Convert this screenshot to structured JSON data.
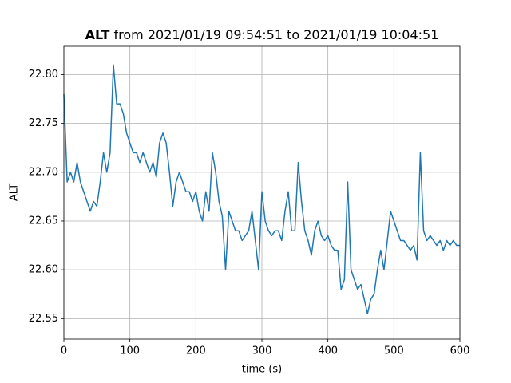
{
  "chart_data": {
    "type": "line",
    "title": {
      "bold": "ALT",
      "rest": "from 2021/01/19 09:54:51 to 2021/01/19 10:04:51"
    },
    "x_label": "time (s)",
    "y_label": "ALT",
    "x": [
      0,
      5,
      10,
      15,
      20,
      25,
      30,
      35,
      40,
      45,
      50,
      55,
      60,
      65,
      70,
      75,
      80,
      85,
      90,
      95,
      100,
      105,
      110,
      115,
      120,
      125,
      130,
      135,
      140,
      145,
      150,
      155,
      160,
      165,
      170,
      175,
      180,
      185,
      190,
      195,
      200,
      205,
      210,
      215,
      220,
      225,
      230,
      235,
      240,
      245,
      250,
      255,
      260,
      265,
      270,
      275,
      280,
      285,
      290,
      295,
      300,
      305,
      310,
      315,
      320,
      325,
      330,
      335,
      340,
      345,
      350,
      355,
      360,
      365,
      370,
      375,
      380,
      385,
      390,
      395,
      400,
      405,
      410,
      415,
      420,
      425,
      430,
      435,
      440,
      445,
      450,
      455,
      460,
      465,
      470,
      475,
      480,
      485,
      490,
      495,
      500,
      505,
      510,
      515,
      520,
      525,
      530,
      535,
      540,
      545,
      550,
      555,
      560,
      565,
      570,
      575,
      580,
      585,
      590,
      595,
      600
    ],
    "series": [
      {
        "name": "ALT",
        "color": "#1f77b4",
        "values": [
          22.78,
          22.69,
          22.7,
          22.69,
          22.71,
          22.69,
          22.68,
          22.67,
          22.66,
          22.67,
          22.665,
          22.69,
          22.72,
          22.7,
          22.72,
          22.81,
          22.77,
          22.77,
          22.76,
          22.74,
          22.73,
          22.72,
          22.72,
          22.71,
          22.72,
          22.71,
          22.7,
          22.71,
          22.695,
          22.73,
          22.74,
          22.73,
          22.7,
          22.665,
          22.69,
          22.7,
          22.69,
          22.68,
          22.68,
          22.67,
          22.68,
          22.66,
          22.65,
          22.68,
          22.66,
          22.72,
          22.7,
          22.67,
          22.655,
          22.6,
          22.66,
          22.65,
          22.64,
          22.64,
          22.63,
          22.635,
          22.64,
          22.66,
          22.63,
          22.6,
          22.68,
          22.65,
          22.64,
          22.635,
          22.64,
          22.64,
          22.63,
          22.66,
          22.68,
          22.64,
          22.64,
          22.71,
          22.67,
          22.64,
          22.63,
          22.615,
          22.64,
          22.65,
          22.635,
          22.63,
          22.635,
          22.625,
          22.62,
          22.62,
          22.58,
          22.59,
          22.69,
          22.6,
          22.59,
          22.58,
          22.585,
          22.57,
          22.555,
          22.57,
          22.575,
          22.6,
          22.62,
          22.6,
          22.63,
          22.66,
          22.65,
          22.64,
          22.63,
          22.63,
          22.625,
          22.62,
          22.625,
          22.61,
          22.72,
          22.64,
          22.63,
          22.635,
          22.63,
          22.625,
          22.63,
          22.62,
          22.63,
          22.625,
          22.63,
          22.625,
          22.625
        ]
      }
    ],
    "xlim": [
      0,
      600
    ],
    "xticks": [
      0,
      100,
      200,
      300,
      400,
      500,
      600
    ],
    "ylim": [
      22.529,
      22.829
    ],
    "yticks": [
      22.55,
      {
        "value": 22.6,
        "label": "22.60"
      },
      22.65,
      {
        "value": 22.7,
        "label": "22.70"
      },
      22.75,
      {
        "value": 22.8,
        "label": "22.80"
      }
    ],
    "grid": true
  }
}
